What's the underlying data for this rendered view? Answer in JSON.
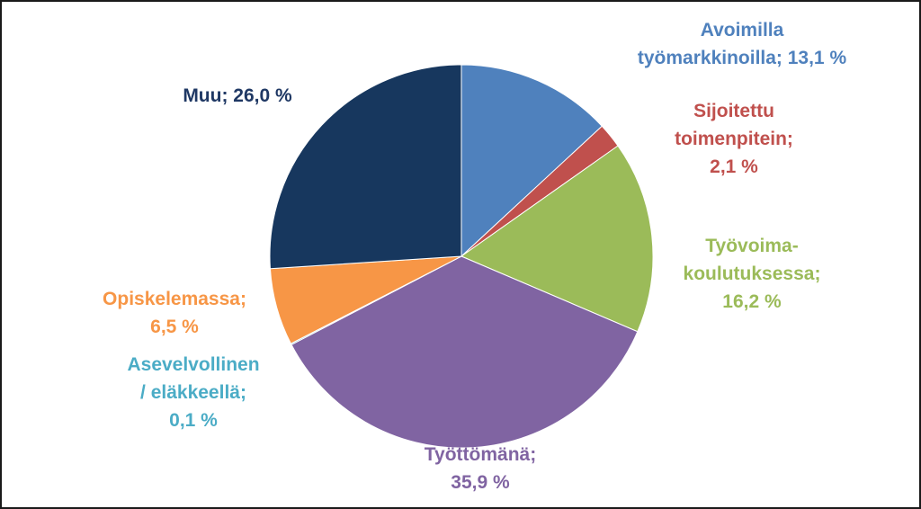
{
  "chart_data": {
    "type": "pie",
    "title": "",
    "slices": [
      {
        "label_lines": [
          "Avoimilla",
          "työmarkkinoilla; 13,1 %"
        ],
        "value": 13.1,
        "color": "#4f81bd",
        "label_color": "#4f81bd"
      },
      {
        "label_lines": [
          "Sijoitettu",
          "toimenpitein;",
          "2,1 %"
        ],
        "value": 2.1,
        "color": "#c0504d",
        "label_color": "#c0504d"
      },
      {
        "label_lines": [
          "Työvoima-",
          "koulutuksessa;",
          "16,2 %"
        ],
        "value": 16.2,
        "color": "#9bbb59",
        "label_color": "#9bbb59"
      },
      {
        "label_lines": [
          "Työttömänä;",
          "35,9 %"
        ],
        "value": 35.9,
        "color": "#8064a2",
        "label_color": "#8064a2"
      },
      {
        "label_lines": [
          "Asevelvollinen",
          "/ eläkkeellä;",
          "0,1 %"
        ],
        "value": 0.1,
        "color": "#4bacc6",
        "label_color": "#4bacc6"
      },
      {
        "label_lines": [
          "Opiskelemassa;",
          "6,5 %"
        ],
        "value": 6.5,
        "color": "#f79646",
        "label_color": "#f79646"
      },
      {
        "label_lines": [
          "Muu; 26,0 %"
        ],
        "value": 26.0,
        "color": "#17375e",
        "label_color": "#1f3864"
      }
    ]
  }
}
